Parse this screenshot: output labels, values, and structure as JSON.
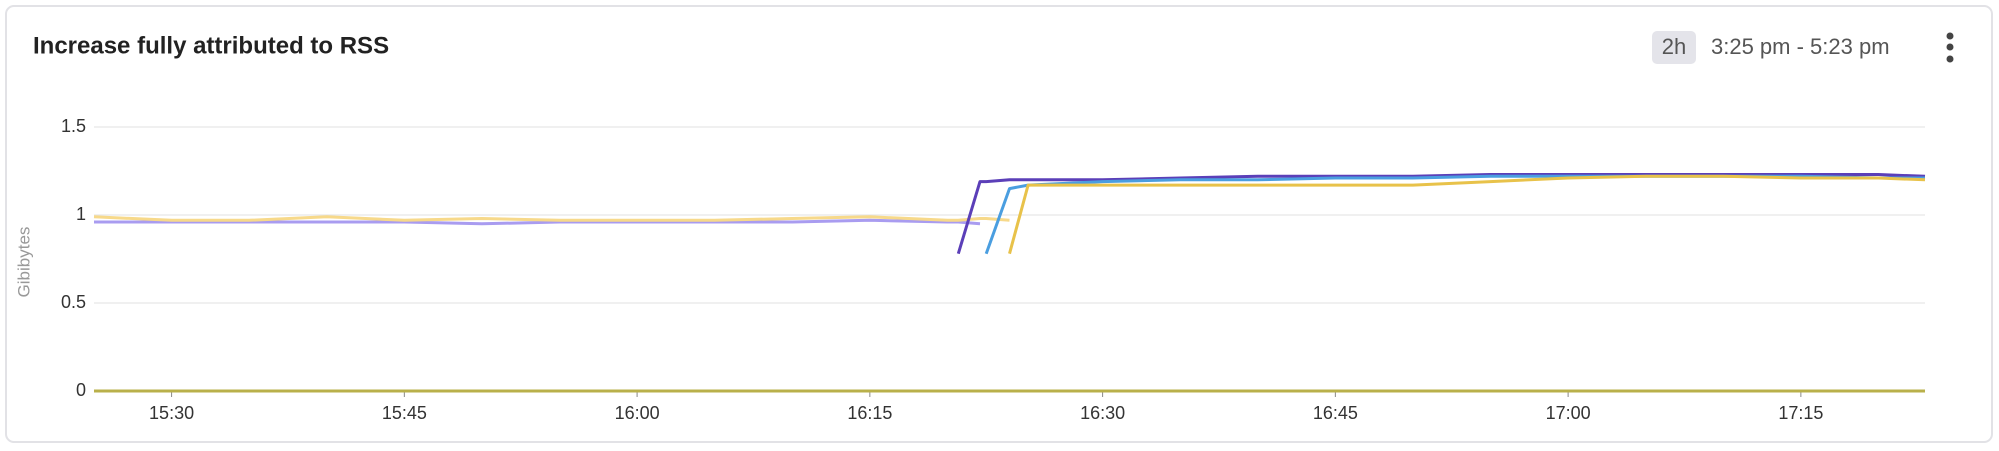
{
  "chart_data": {
    "type": "line",
    "title": "Increase fully attributed to RSS",
    "range_badge": "2h",
    "time_range": "3:25 pm - 5:23 pm",
    "y_label": "Gibibytes",
    "x": [
      925,
      930,
      935,
      940,
      945,
      950,
      955,
      960,
      965,
      970,
      975,
      980,
      980.7,
      982.1,
      982.5,
      984,
      985.2,
      990,
      995,
      1000,
      1005,
      1010,
      1015,
      1020,
      1025,
      1030,
      1035,
      1040,
      1043
    ],
    "xlim": [
      925,
      1043
    ],
    "xticks": [
      {
        "value": 930,
        "label": "15:30"
      },
      {
        "value": 945,
        "label": "15:45"
      },
      {
        "value": 960,
        "label": "16:00"
      },
      {
        "value": 975,
        "label": "16:15"
      },
      {
        "value": 990,
        "label": "16:30"
      },
      {
        "value": 1005,
        "label": "16:45"
      },
      {
        "value": 1020,
        "label": "17:00"
      },
      {
        "value": 1035,
        "label": "17:15"
      }
    ],
    "ylim": [
      0,
      1.5
    ],
    "yticks": [
      0,
      0.5,
      1,
      1.5
    ],
    "grid": true,
    "series": [
      {
        "color": "#a99cf0",
        "values": [
          0.96,
          0.96,
          0.96,
          0.96,
          0.96,
          0.95,
          0.96,
          0.96,
          0.96,
          0.96,
          0.97,
          0.96,
          0.96,
          0.95,
          null,
          null,
          null,
          null,
          null,
          null,
          null,
          null,
          null,
          null,
          null,
          null,
          null,
          null,
          null
        ]
      },
      {
        "color": "#f7d98a",
        "values": [
          0.99,
          0.97,
          0.97,
          0.99,
          0.97,
          0.98,
          0.97,
          0.97,
          0.97,
          0.98,
          0.99,
          0.97,
          0.97,
          0.98,
          0.98,
          0.97,
          null,
          null,
          null,
          null,
          null,
          null,
          null,
          null,
          null,
          null,
          null,
          null,
          null
        ]
      },
      {
        "color": "#5b3fb8",
        "values": [
          null,
          null,
          null,
          null,
          null,
          null,
          null,
          null,
          null,
          null,
          null,
          null,
          0.78,
          1.19,
          1.19,
          1.2,
          1.2,
          1.2,
          1.21,
          1.22,
          1.22,
          1.22,
          1.23,
          1.23,
          1.23,
          1.23,
          1.23,
          1.23,
          1.22
        ]
      },
      {
        "color": "#4a9ee0",
        "values": [
          null,
          null,
          null,
          null,
          null,
          null,
          null,
          null,
          null,
          null,
          null,
          null,
          null,
          null,
          0.78,
          1.15,
          1.17,
          1.19,
          1.2,
          1.2,
          1.21,
          1.21,
          1.22,
          1.22,
          1.22,
          1.22,
          1.22,
          1.21,
          1.21
        ]
      },
      {
        "color": "#e8c24a",
        "values": [
          null,
          null,
          null,
          null,
          null,
          null,
          null,
          null,
          null,
          null,
          null,
          null,
          null,
          null,
          null,
          0.78,
          1.17,
          1.17,
          1.17,
          1.17,
          1.17,
          1.17,
          1.19,
          1.21,
          1.22,
          1.22,
          1.21,
          1.21,
          1.2
        ]
      },
      {
        "color": "#b9b04a",
        "values": [
          0,
          0,
          0,
          0,
          0,
          0,
          0,
          0,
          0,
          0,
          0,
          0,
          0,
          0,
          0,
          0,
          0,
          0,
          0,
          0,
          0,
          0,
          0,
          0,
          0,
          0,
          0,
          0,
          0
        ]
      }
    ]
  }
}
